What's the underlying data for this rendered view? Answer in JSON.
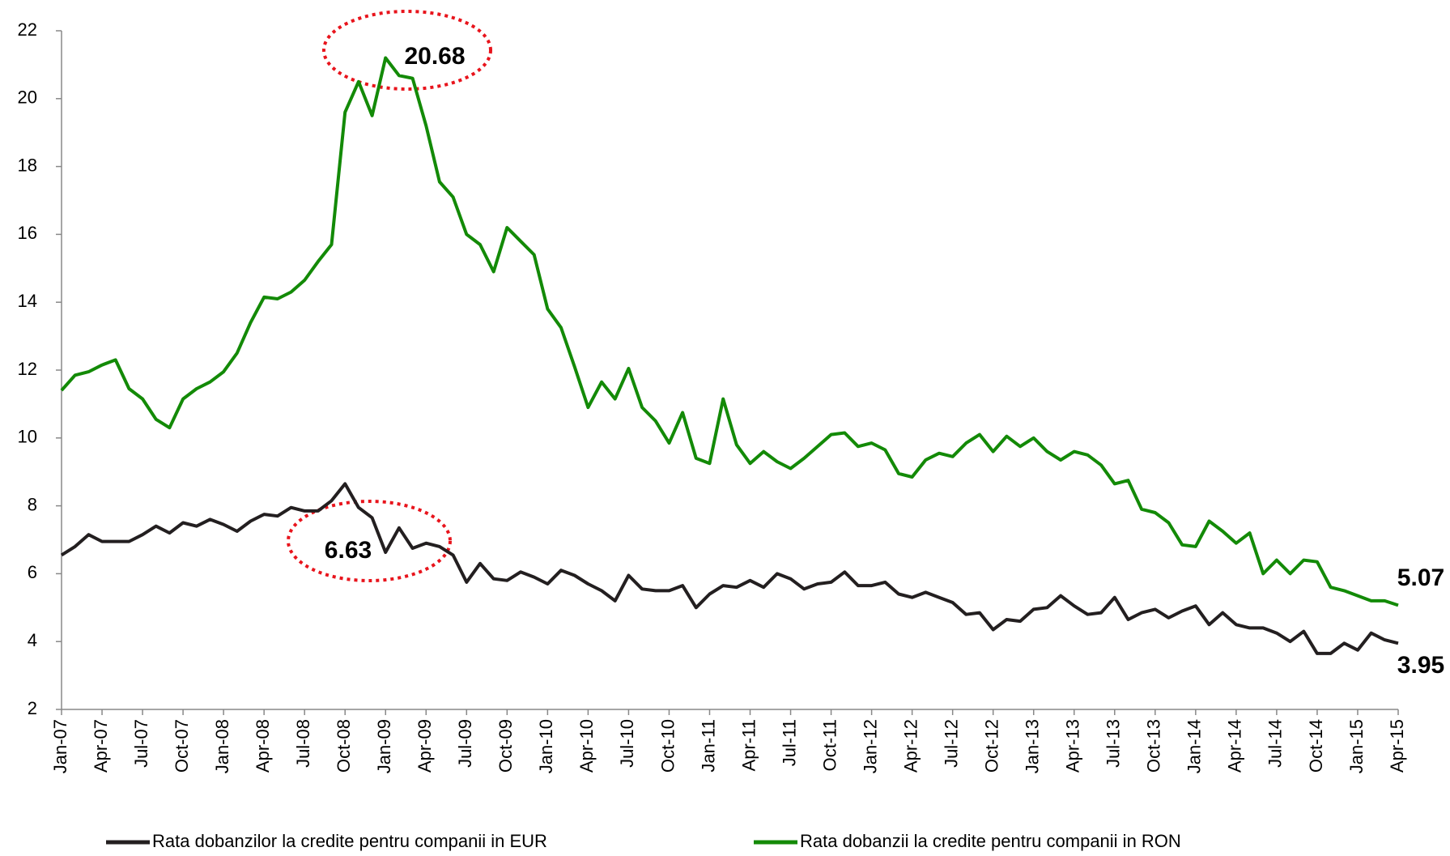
{
  "chart_data": {
    "type": "line",
    "categories": [
      "Jan-07",
      null,
      null,
      "Apr-07",
      null,
      null,
      "Jul-07",
      null,
      null,
      "Oct-07",
      null,
      null,
      "Jan-08",
      null,
      null,
      "Apr-08",
      null,
      null,
      "Jul-08",
      null,
      null,
      "Oct-08",
      null,
      null,
      "Jan-09",
      null,
      null,
      "Apr-09",
      null,
      null,
      "Jul-09",
      null,
      null,
      "Oct-09",
      null,
      null,
      "Jan-10",
      null,
      null,
      "Apr-10",
      null,
      null,
      "Jul-10",
      null,
      null,
      "Oct-10",
      null,
      null,
      "Jan-11",
      null,
      null,
      "Apr-11",
      null,
      null,
      "Jul-11",
      null,
      null,
      "Oct-11",
      null,
      null,
      "Jan-12",
      null,
      null,
      "Apr-12",
      null,
      null,
      "Jul-12",
      null,
      null,
      "Oct-12",
      null,
      null,
      "Jan-13",
      null,
      null,
      "Apr-13",
      null,
      null,
      "Jul-13",
      null,
      null,
      "Oct-13",
      null,
      null,
      "Jan-14",
      null,
      null,
      "Apr-14",
      null,
      null,
      "Jul-14",
      null,
      null,
      "Oct-14",
      null,
      null,
      "Jan-15",
      null,
      null,
      "Apr-15"
    ],
    "series": [
      {
        "name": "Rata dobanzilor la credite pentru companii in EUR",
        "color": "#231f20",
        "values": [
          6.55,
          6.8,
          7.15,
          6.95,
          6.95,
          6.95,
          7.15,
          7.4,
          7.2,
          7.5,
          7.4,
          7.6,
          7.45,
          7.25,
          7.55,
          7.75,
          7.7,
          7.95,
          7.85,
          7.85,
          8.15,
          8.65,
          7.95,
          7.65,
          6.63,
          7.35,
          6.75,
          6.9,
          6.8,
          6.55,
          5.75,
          6.3,
          5.85,
          5.8,
          6.05,
          5.9,
          5.7,
          6.1,
          5.95,
          5.7,
          5.5,
          5.2,
          5.95,
          5.55,
          5.5,
          5.5,
          5.65,
          5.0,
          5.4,
          5.65,
          5.6,
          5.8,
          5.6,
          6.0,
          5.85,
          5.55,
          5.7,
          5.75,
          6.05,
          5.65,
          5.65,
          5.75,
          5.4,
          5.3,
          5.45,
          5.3,
          5.15,
          4.8,
          4.85,
          4.35,
          4.65,
          4.6,
          4.95,
          5.0,
          5.35,
          5.05,
          4.8,
          4.85,
          5.3,
          4.65,
          4.85,
          4.95,
          4.7,
          4.9,
          5.05,
          4.5,
          4.85,
          4.5,
          4.4,
          4.4,
          4.25,
          4.0,
          4.3,
          3.65,
          3.65,
          3.95,
          3.75,
          4.25,
          4.05,
          3.95
        ]
      },
      {
        "name": "Rata dobanzii la credite pentru companii in RON",
        "color": "#138a07",
        "values": [
          11.4,
          11.85,
          11.95,
          12.15,
          12.3,
          11.45,
          11.15,
          10.55,
          10.3,
          11.15,
          11.45,
          11.65,
          11.95,
          12.5,
          13.4,
          14.15,
          14.1,
          14.3,
          14.65,
          15.2,
          15.7,
          19.6,
          20.5,
          19.5,
          21.2,
          20.68,
          20.6,
          19.2,
          17.55,
          17.1,
          16.0,
          15.7,
          14.9,
          16.2,
          15.8,
          15.4,
          13.8,
          13.25,
          12.1,
          10.9,
          11.65,
          11.15,
          12.05,
          10.9,
          10.5,
          9.85,
          10.75,
          9.4,
          9.25,
          11.15,
          9.8,
          9.25,
          9.6,
          9.3,
          9.1,
          9.4,
          9.75,
          10.1,
          10.15,
          9.75,
          9.85,
          9.65,
          8.95,
          8.85,
          9.35,
          9.55,
          9.45,
          9.85,
          10.1,
          9.6,
          10.05,
          9.75,
          10.0,
          9.6,
          9.35,
          9.6,
          9.5,
          9.2,
          8.65,
          8.75,
          7.9,
          7.8,
          7.5,
          6.85,
          6.8,
          7.55,
          7.25,
          6.9,
          7.2,
          6.0,
          6.4,
          6.0,
          6.4,
          6.35,
          5.6,
          5.5,
          5.35,
          5.2,
          5.2,
          5.07
        ]
      }
    ],
    "ylim": [
      2,
      22
    ],
    "yticks": [
      2,
      4,
      6,
      8,
      10,
      12,
      14,
      16,
      18,
      20,
      22
    ],
    "grid": false,
    "legend": "bottom",
    "annotations": [
      "20.68",
      "6.63",
      "5.07",
      "3.95"
    ]
  }
}
